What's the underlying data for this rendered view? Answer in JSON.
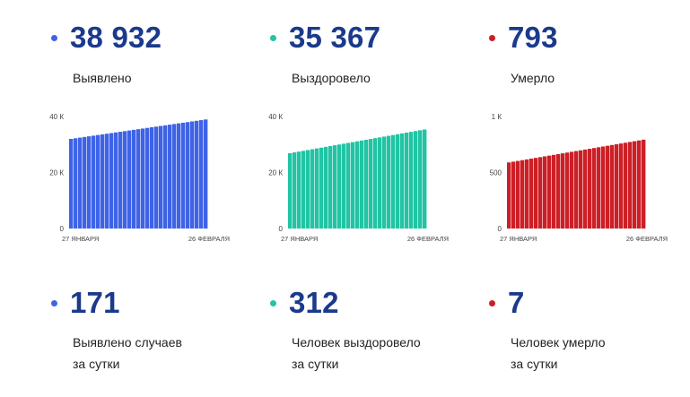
{
  "panels": [
    {
      "total": "38 932",
      "total_label": "Выявлено",
      "daily": "171",
      "daily_label_1": "Выявлено случаев",
      "daily_label_2": "за сутки",
      "color": "#3f63e6"
    },
    {
      "total": "35 367",
      "total_label": "Выздоровело",
      "daily": "312",
      "daily_label_1": "Человек выздоровело",
      "daily_label_2": "за сутки",
      "color": "#21c4a4"
    },
    {
      "total": "793",
      "total_label": "Умерло",
      "daily": "7",
      "daily_label_1": "Человек умерло",
      "daily_label_2": "за сутки",
      "color": "#cc1f26"
    }
  ],
  "chart_data": [
    {
      "type": "bar",
      "x_start_label": "27 ЯНВАРЯ",
      "x_end_label": "26 ФЕВРАЛЯ",
      "y_ticks": [
        "40 К",
        "20 К",
        "0"
      ],
      "ylim": [
        0,
        40000
      ],
      "start": 32000,
      "end": 38932,
      "count": 31
    },
    {
      "type": "bar",
      "x_start_label": "27 ЯНВАРЯ",
      "x_end_label": "26 ФЕВРАЛЯ",
      "y_ticks": [
        "40 К",
        "20 К",
        "0"
      ],
      "ylim": [
        0,
        40000
      ],
      "start": 26900,
      "end": 35367,
      "count": 31
    },
    {
      "type": "bar",
      "x_start_label": "27 ЯНВАРЯ",
      "x_end_label": "26 ФЕВРАЛЯ",
      "y_ticks": [
        "1 К",
        "500",
        "0"
      ],
      "ylim": [
        0,
        1000
      ],
      "start": 590,
      "end": 793,
      "count": 31
    }
  ]
}
